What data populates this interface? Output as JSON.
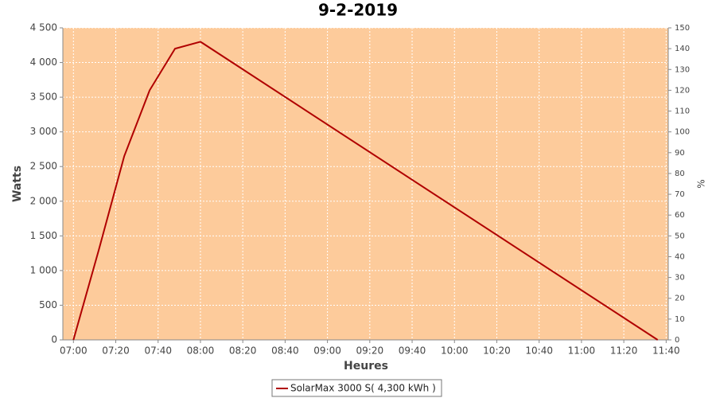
{
  "chart_data": {
    "type": "line",
    "title": "9-2-2019",
    "x_label": "Heures",
    "y_label": "Watts",
    "y2_label": "%",
    "x": [
      "07:00",
      "07:12",
      "07:24",
      "07:36",
      "07:48",
      "08:00",
      "11:36"
    ],
    "series": [
      {
        "name": "SolarMax 3000 S( 4,300 kWh )",
        "color": "#b00000",
        "values": [
          0,
          1300,
          2650,
          3600,
          4200,
          4300,
          0
        ]
      }
    ],
    "xlim": [
      "06:55",
      "11:41"
    ],
    "xticks": [
      "07:00",
      "07:20",
      "07:40",
      "08:00",
      "08:20",
      "08:40",
      "09:00",
      "09:20",
      "09:40",
      "10:00",
      "10:20",
      "10:40",
      "11:00",
      "11:20",
      "11:40"
    ],
    "ylim": [
      0,
      4500
    ],
    "yticks": [
      0,
      500,
      {
        "value": 1000,
        "label": "1 000"
      },
      {
        "value": 1500,
        "label": "1 500"
      },
      {
        "value": 2000,
        "label": "2 000"
      },
      {
        "value": 2500,
        "label": "2 500"
      },
      {
        "value": 3000,
        "label": "3 000"
      },
      {
        "value": 3500,
        "label": "3 500"
      },
      {
        "value": 4000,
        "label": "4 000"
      },
      {
        "value": 4500,
        "label": "4 500"
      }
    ],
    "y2lim": [
      0,
      150
    ],
    "y2ticks": [
      0,
      10,
      20,
      30,
      40,
      50,
      60,
      70,
      80,
      90,
      100,
      110,
      120,
      130,
      140,
      150
    ],
    "grid": true,
    "plot_background": "#fdcb9b",
    "legend": "bottom"
  }
}
